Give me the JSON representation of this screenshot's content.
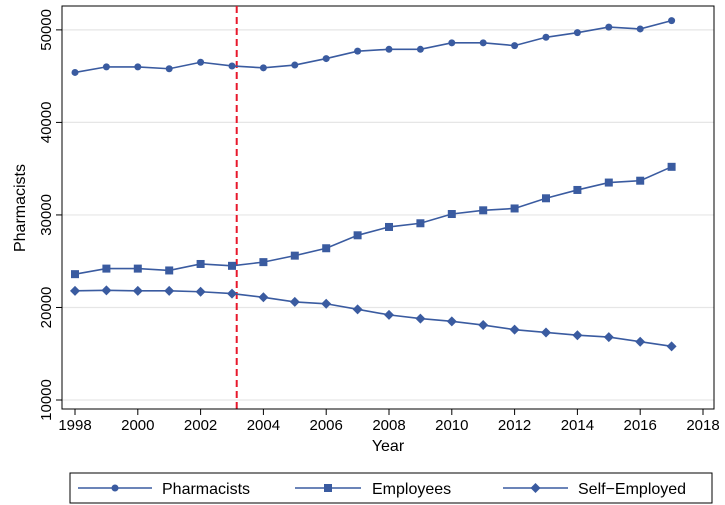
{
  "chart_data": {
    "type": "line",
    "xlabel": "Year",
    "ylabel": "Pharmacists",
    "xlim": [
      1998,
      2018
    ],
    "ylim": [
      10000,
      51500
    ],
    "x_ticks": [
      1998,
      2000,
      2002,
      2004,
      2006,
      2008,
      2010,
      2012,
      2014,
      2016,
      2018
    ],
    "y_ticks": [
      10000,
      20000,
      30000,
      40000,
      50000
    ],
    "grid": "horizontal",
    "legend_position": "bottom",
    "vline": {
      "x": 2003.15,
      "color": "#e8182c",
      "style": "dashed"
    },
    "colors": {
      "series": "#3a5ba0",
      "grid": "#e6e6e6",
      "vline": "#e8182c"
    },
    "x": [
      1998,
      1999,
      2000,
      2001,
      2002,
      2003,
      2004,
      2005,
      2006,
      2007,
      2008,
      2009,
      2010,
      2011,
      2012,
      2013,
      2014,
      2015,
      2016,
      2017
    ],
    "series": [
      {
        "name": "Pharmacists",
        "marker": "circle",
        "values": [
          45400,
          46000,
          46000,
          45800,
          46500,
          46100,
          45900,
          46200,
          46900,
          47700,
          47900,
          47900,
          48600,
          48600,
          48300,
          49200,
          49700,
          50300,
          50100,
          51000
        ]
      },
      {
        "name": "Employees",
        "marker": "square",
        "values": [
          23600,
          24200,
          24200,
          24000,
          24700,
          24500,
          24900,
          25600,
          26400,
          27800,
          28700,
          29100,
          30100,
          30500,
          30700,
          31800,
          32700,
          33500,
          33700,
          35200
        ]
      },
      {
        "name": "Self−Employed",
        "marker": "diamond",
        "values": [
          21800,
          21850,
          21800,
          21800,
          21700,
          21500,
          21100,
          20600,
          20400,
          19800,
          19200,
          18800,
          18500,
          18100,
          17600,
          17300,
          17000,
          16800,
          16300,
          15800
        ]
      }
    ]
  }
}
